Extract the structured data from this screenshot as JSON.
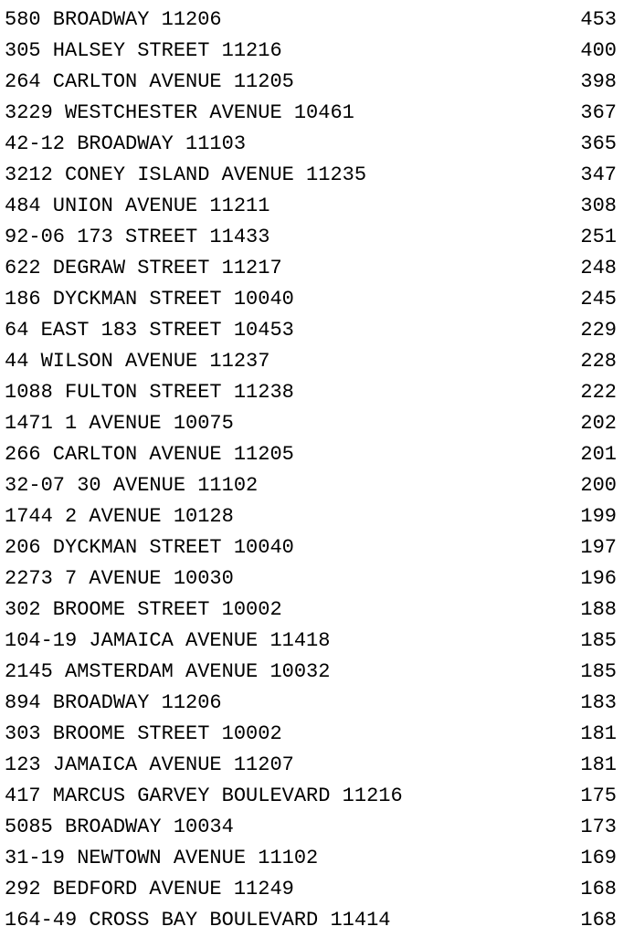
{
  "rows": [
    {
      "address": "580 BROADWAY 11206",
      "count": "453"
    },
    {
      "address": "305 HALSEY STREET 11216",
      "count": "400"
    },
    {
      "address": "264 CARLTON AVENUE 11205",
      "count": "398"
    },
    {
      "address": "3229 WESTCHESTER AVENUE 10461",
      "count": "367"
    },
    {
      "address": "42-12 BROADWAY 11103",
      "count": "365"
    },
    {
      "address": "3212 CONEY ISLAND AVENUE 11235",
      "count": "347"
    },
    {
      "address": "484 UNION AVENUE 11211",
      "count": "308"
    },
    {
      "address": "92-06 173 STREET 11433",
      "count": "251"
    },
    {
      "address": "622 DEGRAW STREET 11217",
      "count": "248"
    },
    {
      "address": "186 DYCKMAN STREET 10040",
      "count": "245"
    },
    {
      "address": "64 EAST 183 STREET 10453",
      "count": "229"
    },
    {
      "address": "44 WILSON AVENUE 11237",
      "count": "228"
    },
    {
      "address": "1088 FULTON STREET 11238",
      "count": "222"
    },
    {
      "address": "1471 1 AVENUE 10075",
      "count": "202"
    },
    {
      "address": "266 CARLTON AVENUE 11205",
      "count": "201"
    },
    {
      "address": "32-07 30 AVENUE 11102",
      "count": "200"
    },
    {
      "address": "1744 2 AVENUE 10128",
      "count": "199"
    },
    {
      "address": "206 DYCKMAN STREET 10040",
      "count": "197"
    },
    {
      "address": "2273 7 AVENUE 10030",
      "count": "196"
    },
    {
      "address": "302 BROOME STREET 10002",
      "count": "188"
    },
    {
      "address": "104-19 JAMAICA AVENUE 11418",
      "count": "185"
    },
    {
      "address": "2145 AMSTERDAM AVENUE 10032",
      "count": "185"
    },
    {
      "address": "894 BROADWAY 11206",
      "count": "183"
    },
    {
      "address": "303 BROOME STREET 10002",
      "count": "181"
    },
    {
      "address": "123 JAMAICA AVENUE 11207",
      "count": "181"
    },
    {
      "address": "417 MARCUS GARVEY BOULEVARD 11216",
      "count": "175"
    },
    {
      "address": "5085 BROADWAY 10034",
      "count": "173"
    },
    {
      "address": "31-19 NEWTOWN AVENUE 11102",
      "count": "169"
    },
    {
      "address": "292 BEDFORD AVENUE 11249",
      "count": "168"
    },
    {
      "address": "164-49 CROSS BAY BOULEVARD 11414",
      "count": "168"
    }
  ]
}
